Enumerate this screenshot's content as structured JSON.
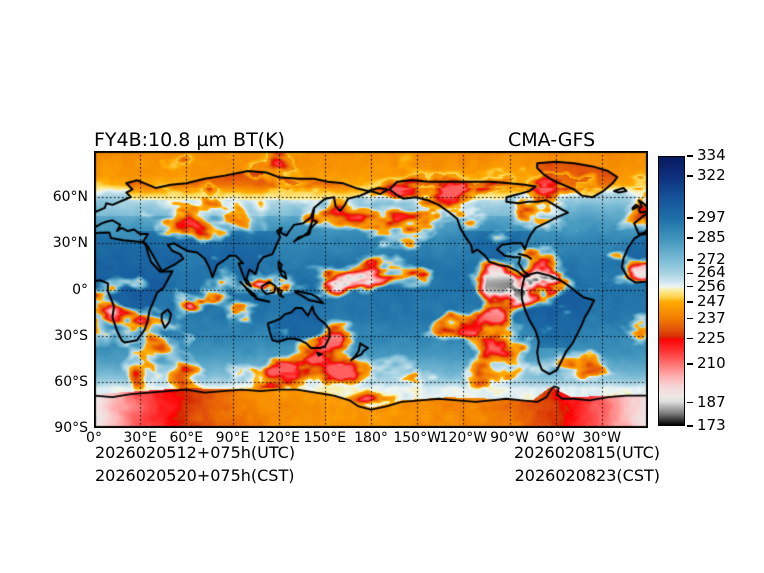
{
  "chart_data": {
    "type": "heatmap",
    "title_left": "FY4B:10.8 µm BT(K)",
    "title_right": "CMA-GFS",
    "projection": "global equirectangular, longitudes 0°E eastward to 0°, latitudes 90°N to 90°S",
    "grid": "dotted graticule every 30 degrees",
    "x_tick_labels": [
      "0°",
      "30°E",
      "60°E",
      "90°E",
      "120°E",
      "150°E",
      "180°",
      "150°W",
      "120°W",
      "90°W",
      "60°W",
      "30°W"
    ],
    "y_tick_labels": [
      "60°N",
      "30°N",
      "0°",
      "30°S",
      "60°S",
      "90°S"
    ],
    "colorbar": {
      "unit": "K",
      "vmin": 173,
      "vmax": 334,
      "tick_values": [
        334,
        322,
        297,
        285,
        272,
        264,
        256,
        247,
        237,
        225,
        210,
        187,
        173
      ],
      "stops": [
        [
          334,
          "#071a5e"
        ],
        [
          322,
          "#0d2f7c"
        ],
        [
          310,
          "#14529a"
        ],
        [
          297,
          "#1d6fa6"
        ],
        [
          285,
          "#3f94bc"
        ],
        [
          272,
          "#7cbcd6"
        ],
        [
          264,
          "#a8d3e2"
        ],
        [
          258,
          "#d8ebf2"
        ],
        [
          256,
          "#eef6f2"
        ],
        [
          254,
          "#fcee9e"
        ],
        [
          250,
          "#ffd44d"
        ],
        [
          247,
          "#ffaa00"
        ],
        [
          237,
          "#f27d00"
        ],
        [
          230,
          "#e1500a"
        ],
        [
          225.2,
          "#d42600"
        ],
        [
          225,
          "#ff0000"
        ],
        [
          218,
          "#ff2e2e"
        ],
        [
          210,
          "#ff6f6f"
        ],
        [
          202,
          "#ffb0b0"
        ],
        [
          196,
          "#f6d7d7"
        ],
        [
          190,
          "#efe7e7"
        ],
        [
          187,
          "#dedede"
        ],
        [
          180,
          "#7d7d7d"
        ],
        [
          173,
          "#000000"
        ]
      ]
    },
    "footer": {
      "left_line1": "2026020512+075h(UTC)",
      "left_line2": "2026020520+075h(CST)",
      "right_line1": "2026020815(UTC)",
      "right_line2": "2026020823(CST)"
    },
    "colors": {
      "coastline": "#000000",
      "gridline": "#000000",
      "frame": "#000000",
      "background": "#ffffff"
    }
  }
}
